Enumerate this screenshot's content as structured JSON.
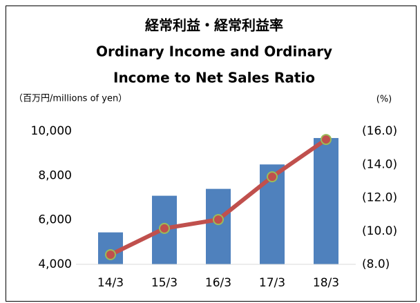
{
  "chart_data": {
    "type": "bar_line",
    "title": [
      "経常利益・経常利益率",
      "Ordinary Income and Ordinary",
      "Income to Net Sales Ratio"
    ],
    "y_label": "（百万円/millions of yen）",
    "y2_label": "(%)",
    "categories": [
      "14/3",
      "15/3",
      "16/3",
      "17/3",
      "18/3"
    ],
    "series": [
      {
        "name": "Ordinary Income",
        "type": "bar",
        "color": "#4f81bd",
        "values": [
          5440,
          7090,
          7400,
          8500,
          9690
        ]
      },
      {
        "name": "Ordinary Income to Net Sales Ratio",
        "type": "line",
        "axis": "y2",
        "color": "#c0504d",
        "marker_edge": "#9bbb59",
        "values": [
          8.58,
          10.16,
          10.69,
          13.26,
          15.5
        ]
      }
    ],
    "ylim": [
      4000,
      10000
    ],
    "yticks": [
      {
        "value": 4000,
        "label": "4,000"
      },
      {
        "value": 6000,
        "label": "6,000"
      },
      {
        "value": 8000,
        "label": "8,000"
      },
      {
        "value": 10000,
        "label": "10,000"
      }
    ],
    "y2lim": [
      8,
      16
    ],
    "y2ticks": [
      {
        "value": 8,
        "label": "(8.0)"
      },
      {
        "value": 10,
        "label": "(10.0)"
      },
      {
        "value": 12,
        "label": "(12.0)"
      },
      {
        "value": 14,
        "label": "(14.0)"
      },
      {
        "value": 16,
        "label": "(16.0)"
      }
    ]
  }
}
